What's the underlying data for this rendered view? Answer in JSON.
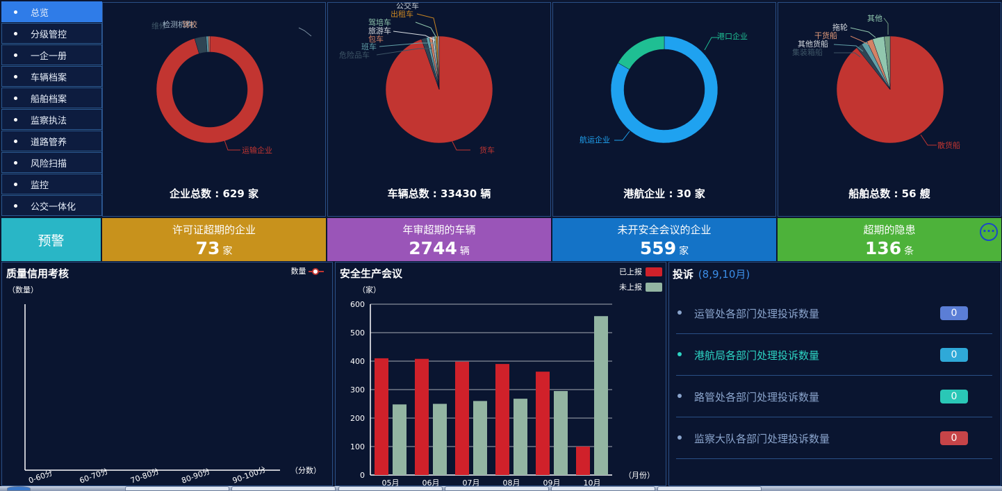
{
  "sidebar": {
    "items": [
      {
        "label": "总览",
        "active": true
      },
      {
        "label": "分级管控"
      },
      {
        "label": "一企一册"
      },
      {
        "label": "车辆档案"
      },
      {
        "label": "船舶档案"
      },
      {
        "label": "监察执法"
      },
      {
        "label": "道路管养"
      },
      {
        "label": "风险扫描"
      },
      {
        "label": "监控"
      },
      {
        "label": "公交一体化"
      }
    ]
  },
  "pies": {
    "enterprise": {
      "title": "企业总数 : 629 家",
      "labels": {
        "main": "运输企业",
        "a": "检测机构",
        "b": "维修",
        "c": "驾校"
      }
    },
    "vehicle": {
      "title": "车辆总数 : 33430  辆",
      "labels": {
        "main": "货车",
        "a": "危险品车",
        "b": "班车",
        "c": "旅游车",
        "d": "包车",
        "e": "驾培车",
        "f": "出租车",
        "g": "公交车"
      }
    },
    "port": {
      "title": "港航企业 : 30 家",
      "labels": {
        "main": "航运企业",
        "a": "港口企业"
      }
    },
    "ship": {
      "title": "船舶总数 : 56 艘",
      "labels": {
        "main": "散货船",
        "a": "集装箱船",
        "b": "其他货船",
        "c": "干货船",
        "d": "拖轮",
        "e": "其他"
      }
    }
  },
  "warnings": {
    "header": "预警",
    "items": [
      {
        "label": "许可证超期的企业",
        "value": "73",
        "unit": "家",
        "color": "#c8921c"
      },
      {
        "label": "年审超期的车辆",
        "value": "2744",
        "unit": "辆",
        "color": "#9a55b8"
      },
      {
        "label": "未开安全会议的企业",
        "value": "559",
        "unit": "家",
        "color": "#1473c7"
      },
      {
        "label": "超期的隐患",
        "value": "136",
        "unit": "条",
        "color": "#4db23a"
      }
    ]
  },
  "quality": {
    "title": "质量信用考核",
    "legend": "数量",
    "y_label": "（数量）",
    "x_label": "（分数）"
  },
  "safety": {
    "title": "安全生产会议",
    "y_label": "（家）",
    "x_label": "（月份）"
  },
  "complaints": {
    "title": "投诉",
    "subtitle": "(8,9,10月)",
    "rows": [
      {
        "label": "运管处各部门处理投诉数量",
        "count": "0",
        "text_color": "#8aa4cc",
        "badge_color": "#5b7ed6"
      },
      {
        "label": "港航局各部门处理投诉数量",
        "count": "0",
        "text_color": "#2dd4c3",
        "badge_color": "#2fa9d8"
      },
      {
        "label": "路管处各部门处理投诉数量",
        "count": "0",
        "text_color": "#8aa4cc",
        "badge_color": "#2ac7b6"
      },
      {
        "label": "监察大队各部门处理投诉数量",
        "count": "0",
        "text_color": "#8aa4cc",
        "badge_color": "#c64448"
      }
    ]
  },
  "chart_data": [
    {
      "type": "pie",
      "title": "企业总数 : 629 家",
      "labels": [
        "运输企业",
        "检测机构",
        "维修",
        "驾校"
      ],
      "values": [
        600,
        22,
        4,
        3
      ],
      "colors": [
        "#c23531",
        "#2f4554",
        "#61a0a8",
        "#d48265"
      ]
    },
    {
      "type": "pie",
      "title": "车辆总数 : 33430  辆",
      "labels": [
        "货车",
        "危险品车",
        "班车",
        "旅游车",
        "包车",
        "驾培车",
        "出租车",
        "公交车"
      ],
      "values": [
        31630,
        500,
        300,
        300,
        200,
        150,
        200,
        150
      ],
      "colors": [
        "#c23531",
        "#2f4554",
        "#61a0a8",
        "#d48265",
        "#c4ccd3",
        "#91c7ae",
        "#ca8622",
        "#bda29a"
      ]
    },
    {
      "type": "pie",
      "title": "港航企业 : 30 家",
      "labels": [
        "航运企业",
        "港口企业"
      ],
      "values": [
        25,
        5
      ],
      "colors": [
        "#1fa2f0",
        "#1fbf93"
      ]
    },
    {
      "type": "pie",
      "title": "船舶总数 : 56 艘",
      "labels": [
        "散货船",
        "集装箱船",
        "其他货船",
        "干货船",
        "拖轮",
        "其他"
      ],
      "values": [
        50,
        1,
        1,
        1,
        2,
        1
      ],
      "colors": [
        "#c23531",
        "#2f4554",
        "#61a0a8",
        "#d48265",
        "#91c7ae",
        "#749f83"
      ]
    },
    {
      "type": "line",
      "title": "质量信用考核",
      "categories": [
        "0-60分",
        "60-70分",
        "70-80分",
        "80-90分",
        "90-100分"
      ],
      "series": [
        {
          "name": "数量",
          "values": [
            0,
            0,
            0,
            0,
            0
          ]
        }
      ],
      "ylabel": "（数量）",
      "xlabel": "（分数）"
    },
    {
      "type": "bar",
      "title": "安全生产会议",
      "categories": [
        "05月",
        "06月",
        "07月",
        "08月",
        "09月",
        "10月"
      ],
      "series": [
        {
          "name": "已上报",
          "values": [
            410,
            408,
            398,
            390,
            363,
            100
          ],
          "color": "#d0212a"
        },
        {
          "name": "未上报",
          "values": [
            248,
            250,
            260,
            268,
            295,
            558
          ],
          "color": "#93b5a2"
        }
      ],
      "ylabel": "（家）",
      "xlabel": "（月份）",
      "ylim": [
        0,
        600
      ],
      "yticks": [
        0,
        100,
        200,
        300,
        400,
        500,
        600
      ]
    }
  ]
}
